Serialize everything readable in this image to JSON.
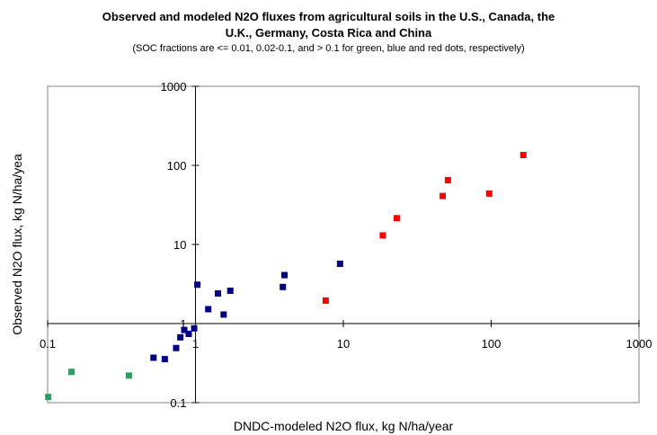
{
  "chart_data": {
    "type": "scatter",
    "title_line1": "Observed and modeled N2O fluxes from agricultural soils in the U.S., Canada, the",
    "title_line2": "U.K., Germany, Costa Rica and China",
    "subtitle": "(SOC fractions are <= 0.01, 0.02-0.1, and > 0.1 for green, blue and red dots, respectively)",
    "xlabel": "DNDC-modeled N2O flux, kg N/ha/year",
    "ylabel": "Observed N2O flux, kg N/ha/yea",
    "x_scale": "log",
    "y_scale": "log",
    "xlim": [
      0.1,
      1000
    ],
    "ylim": [
      0.1,
      1000
    ],
    "x_ticks": [
      "0.1",
      "1",
      "10",
      "100",
      "1000"
    ],
    "y_ticks": [
      "0.1",
      "1",
      "10",
      "100",
      "1000"
    ],
    "grid": false,
    "legend": "none",
    "series": [
      {
        "color": "#339966",
        "points": [
          {
            "x": 0.101,
            "y": 0.118
          },
          {
            "x": 0.145,
            "y": 0.245
          },
          {
            "x": 0.355,
            "y": 0.22
          }
        ]
      },
      {
        "color": "#000080",
        "points": [
          {
            "x": 0.52,
            "y": 0.37
          },
          {
            "x": 0.62,
            "y": 0.355
          },
          {
            "x": 0.74,
            "y": 0.49
          },
          {
            "x": 0.79,
            "y": 0.67
          },
          {
            "x": 0.84,
            "y": 0.83
          },
          {
            "x": 0.9,
            "y": 0.74
          },
          {
            "x": 0.98,
            "y": 0.87
          },
          {
            "x": 1.03,
            "y": 3.1
          },
          {
            "x": 1.22,
            "y": 1.52
          },
          {
            "x": 1.42,
            "y": 2.4
          },
          {
            "x": 1.55,
            "y": 1.3
          },
          {
            "x": 1.72,
            "y": 2.6
          },
          {
            "x": 3.9,
            "y": 2.9
          },
          {
            "x": 4.0,
            "y": 4.1
          },
          {
            "x": 9.5,
            "y": 5.7
          }
        ]
      },
      {
        "color": "#ff0000",
        "points": [
          {
            "x": 7.6,
            "y": 1.95
          },
          {
            "x": 18.5,
            "y": 13.0
          },
          {
            "x": 23.0,
            "y": 21.5
          },
          {
            "x": 47.0,
            "y": 41.0
          },
          {
            "x": 51.0,
            "y": 65.0
          },
          {
            "x": 97.0,
            "y": 44.0
          },
          {
            "x": 165.0,
            "y": 135.0
          }
        ]
      }
    ]
  }
}
